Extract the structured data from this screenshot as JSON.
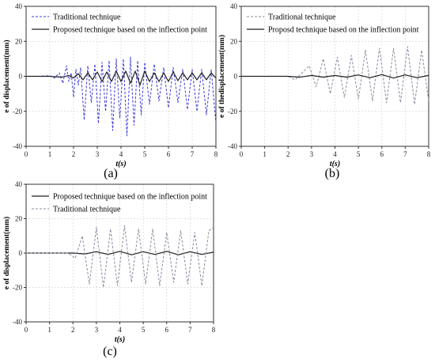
{
  "panels": [
    {
      "label": "(a)"
    },
    {
      "label": "(b)"
    },
    {
      "label": "(c)"
    }
  ],
  "colors": {
    "traditional_blue": "#3b3bd6",
    "traditional_gray": "#8a8a9e",
    "proposed": "#222222",
    "grid": "#d6d6d6",
    "axes": "#333333"
  },
  "chart_data": [
    {
      "type": "line",
      "panel": "(a)",
      "xlabel": "t(s)",
      "ylabel": "e of displacement(mm)",
      "xlim": [
        0,
        8
      ],
      "ylim": [
        -40,
        40
      ],
      "xticks": [
        0,
        1,
        2,
        3,
        4,
        5,
        6,
        7,
        8
      ],
      "yticks": [
        -40,
        -20,
        0,
        20,
        40
      ],
      "grid": true,
      "legend_position": "top-left",
      "series": [
        {
          "name": "Traditional technique",
          "style": "dashed",
          "color": "#3b3bd6",
          "x": [
            0,
            0.5,
            1.0,
            1.2,
            1.4,
            1.55,
            1.7,
            1.8,
            1.9,
            2.0,
            2.1,
            2.2,
            2.3,
            2.45,
            2.6,
            2.75,
            2.9,
            3.05,
            3.2,
            3.35,
            3.5,
            3.65,
            3.8,
            3.95,
            4.1,
            4.25,
            4.4,
            4.55,
            4.7,
            4.85,
            5.0,
            5.2,
            5.4,
            5.6,
            5.8,
            6.0,
            6.2,
            6.4,
            6.6,
            6.8,
            7.0,
            7.2,
            7.4,
            7.6,
            7.8,
            8.0
          ],
          "y": [
            0,
            0,
            0.3,
            -1,
            2,
            -4,
            6,
            -3,
            2,
            -12,
            4,
            -5,
            5,
            -25,
            6,
            -15,
            7,
            -27,
            8,
            -20,
            9,
            -31,
            10,
            -24,
            10,
            -34,
            11,
            -28,
            9,
            -22,
            8,
            -16,
            7,
            -14,
            5,
            -18,
            5,
            -15,
            4,
            -19,
            4,
            -20,
            4,
            -22,
            4,
            -27
          ]
        },
        {
          "name": "Proposed technique based on the inflection point",
          "style": "solid",
          "color": "#222222",
          "x": [
            0,
            1.0,
            1.5,
            1.8,
            2.0,
            2.2,
            2.4,
            2.6,
            2.8,
            3.0,
            3.2,
            3.4,
            3.6,
            3.8,
            4.0,
            4.2,
            4.4,
            4.6,
            4.8,
            5.0,
            5.2,
            5.4,
            5.6,
            5.8,
            6.0,
            6.2,
            6.4,
            6.6,
            6.8,
            7.0,
            7.2,
            7.4,
            7.6,
            7.8,
            8.0
          ],
          "y": [
            0,
            0,
            -0.5,
            0.5,
            -1,
            1.5,
            -2,
            2,
            -2,
            2.5,
            -3,
            2.5,
            -3,
            3,
            -3,
            3,
            -4,
            3,
            -5,
            3,
            -3,
            2,
            -3,
            2,
            -3,
            2.5,
            -2.5,
            2,
            -2,
            2,
            -2,
            2,
            -2,
            2,
            -1
          ]
        }
      ]
    },
    {
      "type": "line",
      "panel": "(b)",
      "xlabel": "t(s)",
      "ylabel": "e of thedisplacement(mm)",
      "xlim": [
        0,
        8
      ],
      "ylim": [
        -40,
        40
      ],
      "xticks": [
        0,
        1,
        2,
        3,
        4,
        5,
        6,
        7,
        8
      ],
      "yticks": [
        -40,
        -20,
        0,
        20,
        40
      ],
      "grid": true,
      "legend_position": "top-left",
      "series": [
        {
          "name": "Traditional technique",
          "style": "dashed",
          "color": "#8a8a9e",
          "x": [
            0,
            1.0,
            2.0,
            2.3,
            2.6,
            2.9,
            3.2,
            3.5,
            3.8,
            4.1,
            4.4,
            4.7,
            5.0,
            5.3,
            5.6,
            5.9,
            6.2,
            6.5,
            6.8,
            7.1,
            7.4,
            7.7,
            8.0
          ],
          "y": [
            0,
            0,
            0,
            -2,
            2,
            6,
            -6,
            10,
            -10,
            11,
            -12,
            12,
            -13,
            15,
            -14,
            16,
            -15,
            16,
            -15,
            17,
            -16,
            15,
            -14
          ]
        },
        {
          "name": "Proposd technique based on the inflection point",
          "style": "solid",
          "color": "#222222",
          "x": [
            0,
            1.0,
            2.0,
            2.5,
            3.0,
            3.5,
            4.0,
            4.5,
            5.0,
            5.5,
            6.0,
            6.5,
            7.0,
            7.5,
            8.0
          ],
          "y": [
            0,
            0,
            0,
            -0.5,
            0.5,
            -0.5,
            0.5,
            -0.5,
            0.8,
            -0.8,
            1.0,
            -1.0,
            0.8,
            -0.8,
            0.5
          ]
        }
      ]
    },
    {
      "type": "line",
      "panel": "(c)",
      "xlabel": "t(s)",
      "ylabel": "e of displacement(mm)",
      "xlim": [
        0,
        8
      ],
      "ylim": [
        -40,
        40
      ],
      "xticks": [
        0,
        1,
        2,
        3,
        4,
        5,
        6,
        7,
        8
      ],
      "yticks": [
        -40,
        -20,
        0,
        20,
        40
      ],
      "grid": true,
      "legend_position": "top-left",
      "series": [
        {
          "name": "Proposed technique based on the inflection point",
          "style": "solid",
          "color": "#222222",
          "x": [
            0,
            1.0,
            2.0,
            2.5,
            3.0,
            3.5,
            4.0,
            4.5,
            5.0,
            5.5,
            6.0,
            6.5,
            7.0,
            7.5,
            8.0
          ],
          "y": [
            0,
            0,
            0,
            -0.5,
            0.8,
            -0.8,
            1.0,
            -1.0,
            0.8,
            -0.8,
            1.0,
            -1.0,
            0.8,
            -0.8,
            0.5
          ]
        },
        {
          "name": "Traditional technique",
          "style": "dashed",
          "color": "#8a8a9e",
          "x": [
            0,
            1.0,
            1.8,
            2.1,
            2.4,
            2.7,
            3.0,
            3.3,
            3.6,
            3.9,
            4.2,
            4.5,
            4.8,
            5.1,
            5.4,
            5.7,
            6.0,
            6.3,
            6.6,
            6.9,
            7.2,
            7.5,
            7.8,
            8.0
          ],
          "y": [
            0,
            0,
            0,
            -3,
            10,
            -18,
            15,
            -20,
            14,
            -19,
            16,
            -17,
            14,
            -18,
            14,
            -19,
            12,
            -17,
            13,
            -18,
            12,
            -19,
            13,
            15
          ]
        }
      ]
    }
  ]
}
